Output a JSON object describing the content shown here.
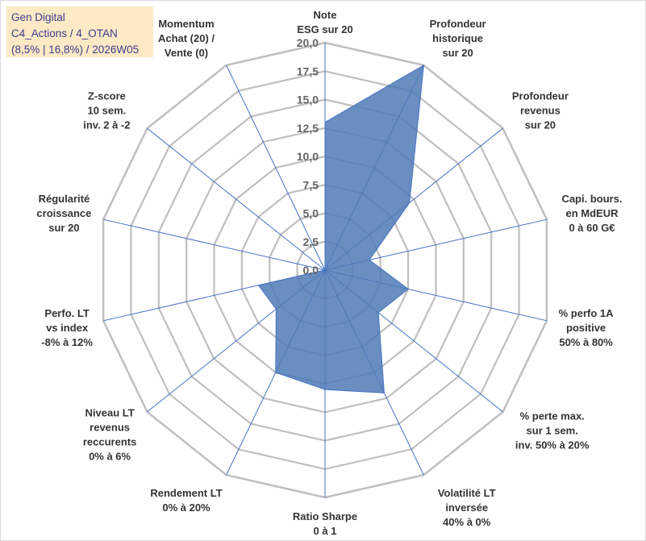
{
  "header": {
    "line1": "Gen Digital",
    "line2": "C4_Actions / 4_OTAN",
    "line3": "(8,5% | 16,8%) / 2026W05"
  },
  "colors": {
    "header_bg": "#fde9c4",
    "header_text": "#3b3b8f",
    "series_fill": "#4f7ab5",
    "series_stroke": "#4472c4",
    "spoke": "#4472c4",
    "grid": "#bfbfbf"
  },
  "chart_data": {
    "type": "radar",
    "title": "",
    "range": [
      0,
      20
    ],
    "tick_step": 2.5,
    "tick_labels": [
      "0,0",
      "2,5",
      "5,0",
      "7,5",
      "10,0",
      "12,5",
      "15,0",
      "17,5",
      "20,0"
    ],
    "grid": true,
    "axes": [
      [
        "Note",
        "ESG sur 20"
      ],
      [
        "Profondeur",
        "historique",
        "sur 20"
      ],
      [
        "Profondeur",
        "revenus",
        "sur 20"
      ],
      [
        "Capi. bours.",
        "en MdEUR",
        "0 à 60 G€"
      ],
      [
        "% perfo 1A",
        "positive",
        "50% à 80%"
      ],
      [
        "% perte max.",
        "sur 1 sem.",
        "inv. 50% à 20%"
      ],
      [
        "Volatilité LT",
        "inversée",
        "40% à 0%"
      ],
      [
        "Ratio Sharpe",
        "0 à 1"
      ],
      [
        "Rendement LT",
        "0% à 20%"
      ],
      [
        "Niveau LT",
        "revenus",
        "reccurents",
        "0% à 6%"
      ],
      [
        "Perfo. LT",
        "vs index",
        "-8% à 12%"
      ],
      [
        "Régularité",
        "croissance",
        "sur 20"
      ],
      [
        "Z-score",
        "10 sem.",
        "inv. 2 à -2"
      ],
      [
        "Momentum",
        "Achat (20) /",
        "Vente (0)"
      ]
    ],
    "series": [
      {
        "name": "Gen Digital",
        "values": [
          13,
          20,
          9.5,
          4,
          7.5,
          6,
          12,
          10.5,
          10,
          5.5,
          6,
          0,
          0,
          0
        ]
      }
    ]
  }
}
